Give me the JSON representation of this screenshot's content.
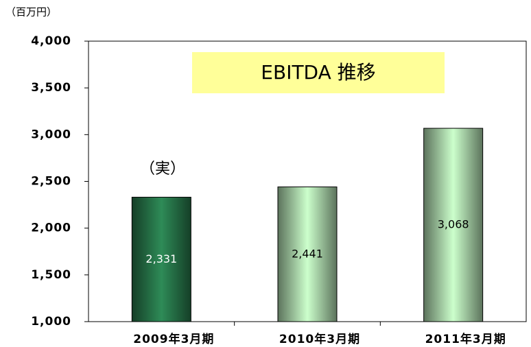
{
  "chart_data": {
    "type": "bar",
    "title": "EBITDA  推移",
    "unit_label": "（百万円）",
    "annotation": "（実）",
    "categories": [
      "2009年3月期",
      "2010年3月期",
      "2011年3月期"
    ],
    "values": [
      2331,
      2441,
      3068
    ],
    "value_labels": [
      "2,331",
      "2,441",
      "3,068"
    ],
    "colors": [
      "#2e8b57",
      "#ccffcc",
      "#ccffcc"
    ],
    "value_label_colors": [
      "#ffffff",
      "#000000",
      "#000000"
    ],
    "ylim": [
      1000,
      4000
    ],
    "yticks": [
      {
        "value": 1000,
        "label": "1,000"
      },
      {
        "value": 1500,
        "label": "1,500"
      },
      {
        "value": 2000,
        "label": "2,000"
      },
      {
        "value": 2500,
        "label": "2,500"
      },
      {
        "value": 3000,
        "label": "3,000"
      },
      {
        "value": 3500,
        "label": "3,500"
      },
      {
        "value": 4000,
        "label": "4,000"
      }
    ],
    "grid": false
  }
}
